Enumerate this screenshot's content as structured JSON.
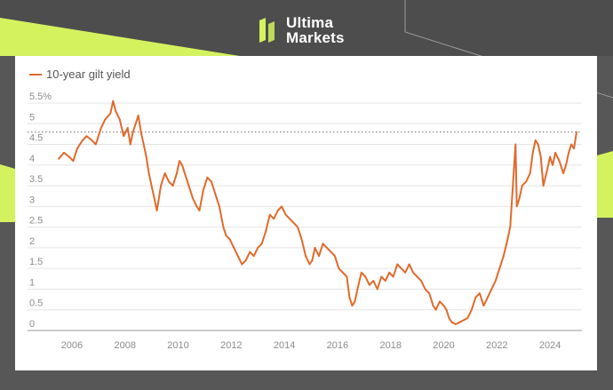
{
  "brand": {
    "line1": "Ultima",
    "line2": "Markets",
    "logo_icon": "ultima-markets-logo-icon",
    "accent_color": "#d4f25e"
  },
  "legend": {
    "label": "10-year gilt yield",
    "color": "#e06a2c"
  },
  "chart_data": {
    "type": "line",
    "title": "",
    "xlabel": "",
    "ylabel": "",
    "xlim": [
      2005.4,
      2025.2
    ],
    "ylim": [
      0,
      5.5
    ],
    "y_ticks": [
      "0",
      "0.5",
      "1",
      "1.5",
      "2",
      "2.5",
      "3",
      "3.5",
      "4",
      "4.5",
      "5",
      "5.5%"
    ],
    "y_tick_values": [
      0,
      0.5,
      1,
      1.5,
      2,
      2.5,
      3,
      3.5,
      4,
      4.5,
      5,
      5.5
    ],
    "x_ticks": [
      "2006",
      "2008",
      "2010",
      "2012",
      "2014",
      "2016",
      "2018",
      "2020",
      "2022",
      "2024"
    ],
    "x_tick_values": [
      2006,
      2008,
      2010,
      2012,
      2014,
      2016,
      2018,
      2020,
      2022,
      2024
    ],
    "grid": "horizontal",
    "reference_line": {
      "y": 4.8,
      "style": "dotted"
    },
    "series": [
      {
        "name": "10-year gilt yield",
        "color": "#e06a2c",
        "x": [
          2005.5,
          2005.7,
          2005.9,
          2006.05,
          2006.2,
          2006.4,
          2006.55,
          2006.75,
          2006.9,
          2007.1,
          2007.25,
          2007.45,
          2007.55,
          2007.65,
          2007.8,
          2007.95,
          2008.1,
          2008.2,
          2008.3,
          2008.4,
          2008.5,
          2008.6,
          2008.7,
          2008.8,
          2008.9,
          2009.0,
          2009.1,
          2009.2,
          2009.35,
          2009.5,
          2009.65,
          2009.8,
          2009.95,
          2010.05,
          2010.15,
          2010.3,
          2010.45,
          2010.55,
          2010.7,
          2010.8,
          2010.95,
          2011.1,
          2011.25,
          2011.4,
          2011.55,
          2011.7,
          2011.8,
          2011.95,
          2012.1,
          2012.25,
          2012.4,
          2012.55,
          2012.7,
          2012.85,
          2013.0,
          2013.15,
          2013.3,
          2013.45,
          2013.6,
          2013.75,
          2013.9,
          2014.05,
          2014.2,
          2014.35,
          2014.5,
          2014.65,
          2014.8,
          2014.95,
          2015.05,
          2015.15,
          2015.3,
          2015.45,
          2015.6,
          2015.75,
          2015.9,
          2016.05,
          2016.2,
          2016.35,
          2016.45,
          2016.55,
          2016.65,
          2016.75,
          2016.9,
          2017.05,
          2017.2,
          2017.35,
          2017.5,
          2017.65,
          2017.8,
          2017.95,
          2018.1,
          2018.25,
          2018.4,
          2018.55,
          2018.7,
          2018.85,
          2019.0,
          2019.15,
          2019.3,
          2019.45,
          2019.6,
          2019.7,
          2019.85,
          2020.0,
          2020.1,
          2020.2,
          2020.3,
          2020.45,
          2020.6,
          2020.75,
          2020.9,
          2021.05,
          2021.2,
          2021.35,
          2021.5,
          2021.65,
          2021.8,
          2021.95,
          2022.1,
          2022.25,
          2022.4,
          2022.5,
          2022.6,
          2022.7,
          2022.75,
          2022.85,
          2022.95,
          2023.1,
          2023.25,
          2023.35,
          2023.45,
          2023.55,
          2023.65,
          2023.75,
          2023.9,
          2024.0,
          2024.1,
          2024.2,
          2024.35,
          2024.5,
          2024.6,
          2024.7,
          2024.8,
          2024.9,
          2025.0
        ],
        "values": [
          4.15,
          4.3,
          4.2,
          4.1,
          4.4,
          4.6,
          4.7,
          4.6,
          4.5,
          4.9,
          5.1,
          5.25,
          5.55,
          5.3,
          5.1,
          4.7,
          4.9,
          4.5,
          4.8,
          5.0,
          5.2,
          4.8,
          4.5,
          4.2,
          3.8,
          3.5,
          3.2,
          2.9,
          3.5,
          3.8,
          3.6,
          3.5,
          3.8,
          4.1,
          4.0,
          3.7,
          3.4,
          3.2,
          3.0,
          2.9,
          3.4,
          3.7,
          3.6,
          3.3,
          3.0,
          2.5,
          2.3,
          2.2,
          2.0,
          1.8,
          1.6,
          1.7,
          1.9,
          1.8,
          2.0,
          2.1,
          2.4,
          2.8,
          2.7,
          2.9,
          3.0,
          2.8,
          2.7,
          2.6,
          2.5,
          2.2,
          1.8,
          1.6,
          1.7,
          2.0,
          1.8,
          2.1,
          2.0,
          1.9,
          1.8,
          1.5,
          1.4,
          1.3,
          0.8,
          0.6,
          0.7,
          1.0,
          1.4,
          1.3,
          1.1,
          1.2,
          1.0,
          1.3,
          1.2,
          1.4,
          1.3,
          1.6,
          1.5,
          1.4,
          1.6,
          1.4,
          1.3,
          1.2,
          1.0,
          0.9,
          0.6,
          0.5,
          0.7,
          0.6,
          0.5,
          0.3,
          0.2,
          0.15,
          0.2,
          0.25,
          0.3,
          0.5,
          0.8,
          0.9,
          0.6,
          0.8,
          1.0,
          1.2,
          1.5,
          1.8,
          2.2,
          2.5,
          3.5,
          4.5,
          3.0,
          3.2,
          3.5,
          3.6,
          3.8,
          4.3,
          4.6,
          4.5,
          4.2,
          3.5,
          3.9,
          4.2,
          4.0,
          4.3,
          4.1,
          3.8,
          4.0,
          4.3,
          4.5,
          4.4,
          4.8
        ]
      }
    ]
  }
}
